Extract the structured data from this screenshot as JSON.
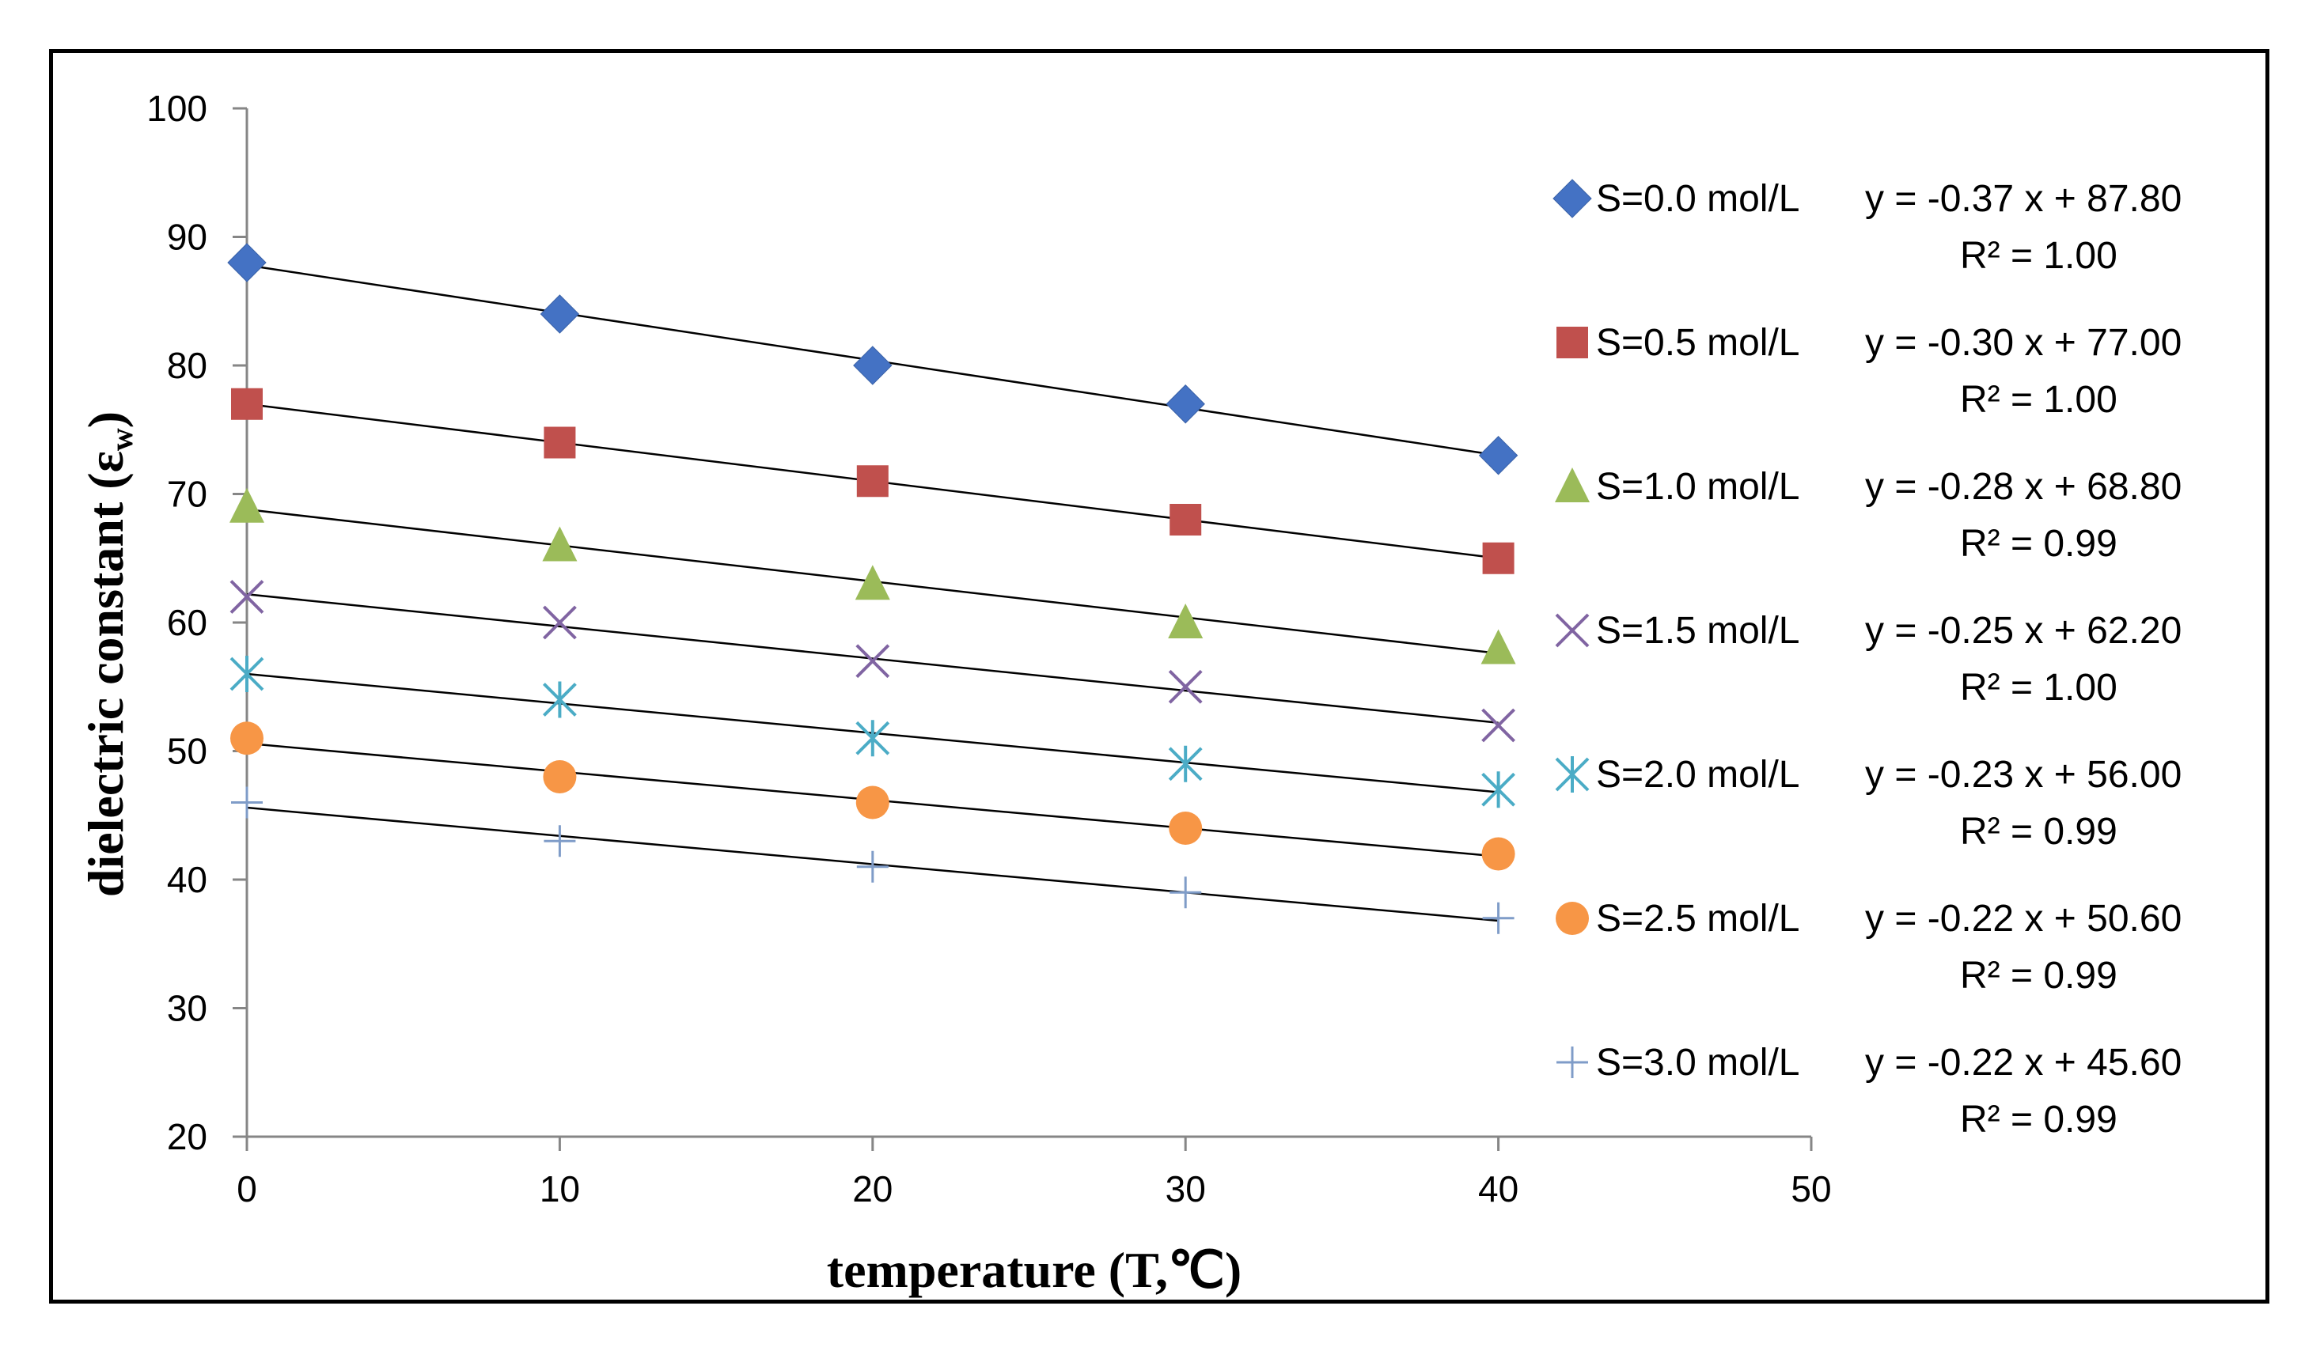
{
  "chart_data": {
    "type": "scatter",
    "title": "",
    "xlabel": "temperature  (T,℃)",
    "ylabel_main": "dielectric constant (",
    "ylabel_symbol": "ε",
    "ylabel_sub": "w",
    "ylabel_close": ")",
    "xlim": [
      0,
      50
    ],
    "ylim": [
      20,
      100
    ],
    "x_ticks": [
      0,
      10,
      20,
      30,
      40,
      50
    ],
    "y_ticks": [
      20,
      30,
      40,
      50,
      60,
      70,
      80,
      90,
      100
    ],
    "x_tick_labels": [
      "0",
      "10",
      "20",
      "30",
      "40",
      "50"
    ],
    "y_tick_labels": [
      "20",
      "30",
      "40",
      "50",
      "60",
      "70",
      "80",
      "90",
      "100"
    ],
    "grid": false,
    "legend_position": "right",
    "x": [
      0,
      10,
      20,
      30,
      40
    ],
    "series": [
      {
        "name": "S=0.0 mol/L",
        "marker": "diamond",
        "color": "#4472C4",
        "values": [
          88,
          84,
          80,
          77,
          73
        ],
        "slope": -0.37,
        "intercept": 87.8,
        "equation": "y = -0.37 x + 87.80",
        "r2": "R² = 1.00"
      },
      {
        "name": "S=0.5 mol/L",
        "marker": "square",
        "color": "#C0504D",
        "values": [
          77,
          74,
          71,
          68,
          65
        ],
        "slope": -0.3,
        "intercept": 77.0,
        "equation": "y = -0.30 x + 77.00",
        "r2": "R² = 1.00"
      },
      {
        "name": "S=1.0 mol/L",
        "marker": "triangle",
        "color": "#9BBB59",
        "values": [
          69,
          66,
          63,
          60,
          58
        ],
        "slope": -0.28,
        "intercept": 68.8,
        "equation": "y = -0.28 x + 68.80",
        "r2": "R² = 0.99"
      },
      {
        "name": "S=1.5 mol/L",
        "marker": "x",
        "color": "#8064A2",
        "values": [
          62,
          60,
          57,
          55,
          52
        ],
        "slope": -0.25,
        "intercept": 62.2,
        "equation": "y = -0.25 x + 62.20",
        "r2": "R² = 1.00"
      },
      {
        "name": "S=2.0 mol/L",
        "marker": "star",
        "color": "#4BACC6",
        "values": [
          56,
          54,
          51,
          49,
          47
        ],
        "slope": -0.23,
        "intercept": 56.0,
        "equation": "y = -0.23 x + 56.00",
        "r2": "R² = 0.99"
      },
      {
        "name": "S=2.5 mol/L",
        "marker": "circle",
        "color": "#F79646",
        "values": [
          51,
          48,
          46,
          44,
          42
        ],
        "slope": -0.22,
        "intercept": 50.6,
        "equation": "y = -0.22 x + 50.60",
        "r2": "R² = 0.99"
      },
      {
        "name": "S=3.0 mol/L",
        "marker": "plus",
        "color": "#7F9CC8",
        "values": [
          46,
          43,
          41,
          39,
          37
        ],
        "slope": -0.22,
        "intercept": 45.6,
        "equation": "y = -0.22 x + 45.60",
        "r2": "R² = 0.99"
      }
    ]
  }
}
